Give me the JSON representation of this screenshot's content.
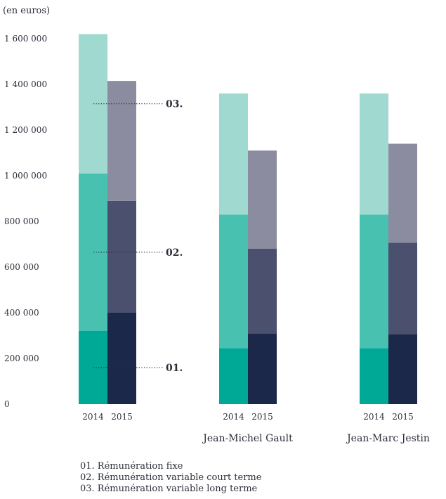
{
  "unit_label": "(en euros)",
  "legend": [
    "01. Rémunération fixe",
    "02. Rémunération variable court terme",
    "03. Rémunération variable long terme"
  ],
  "annotations": [
    "01.",
    "02.",
    "03."
  ],
  "colors": {
    "2014": [
      "#00a896",
      "#48c1b0",
      "#a0d9d0"
    ],
    "2015": [
      "#1c2849",
      "#4a506e",
      "#8c8ca0"
    ],
    "dotted": "#2b2f3a",
    "text": "#2b2f3a"
  },
  "chart_data": {
    "type": "bar",
    "stacked": true,
    "ylim": [
      0,
      1600000
    ],
    "yticks": [
      0,
      200000,
      400000,
      600000,
      800000,
      1000000,
      1200000,
      1400000,
      1600000
    ],
    "ytick_labels": [
      "0",
      "200 000",
      "400 000",
      "600 000",
      "800 000",
      "1 000 000",
      "1 200 000",
      "1 400 000",
      "1 600 000"
    ],
    "stack_components": [
      "01.",
      "02.",
      "03."
    ],
    "groups": [
      {
        "name": "",
        "bars": [
          {
            "year": "2014",
            "values": [
              320000,
              690000,
              610000
            ]
          },
          {
            "year": "2015",
            "values": [
              400000,
              490000,
              525000
            ]
          }
        ]
      },
      {
        "name": "Jean-Michel Gault",
        "bars": [
          {
            "year": "2014",
            "values": [
              245000,
              585000,
              530000
            ]
          },
          {
            "year": "2015",
            "values": [
              310000,
              370000,
              430000
            ]
          }
        ]
      },
      {
        "name": "Jean-Marc Jestin",
        "bars": [
          {
            "year": "2014",
            "values": [
              245000,
              585000,
              530000
            ]
          },
          {
            "year": "2015",
            "values": [
              307000,
              400000,
              433000
            ]
          }
        ]
      }
    ]
  }
}
